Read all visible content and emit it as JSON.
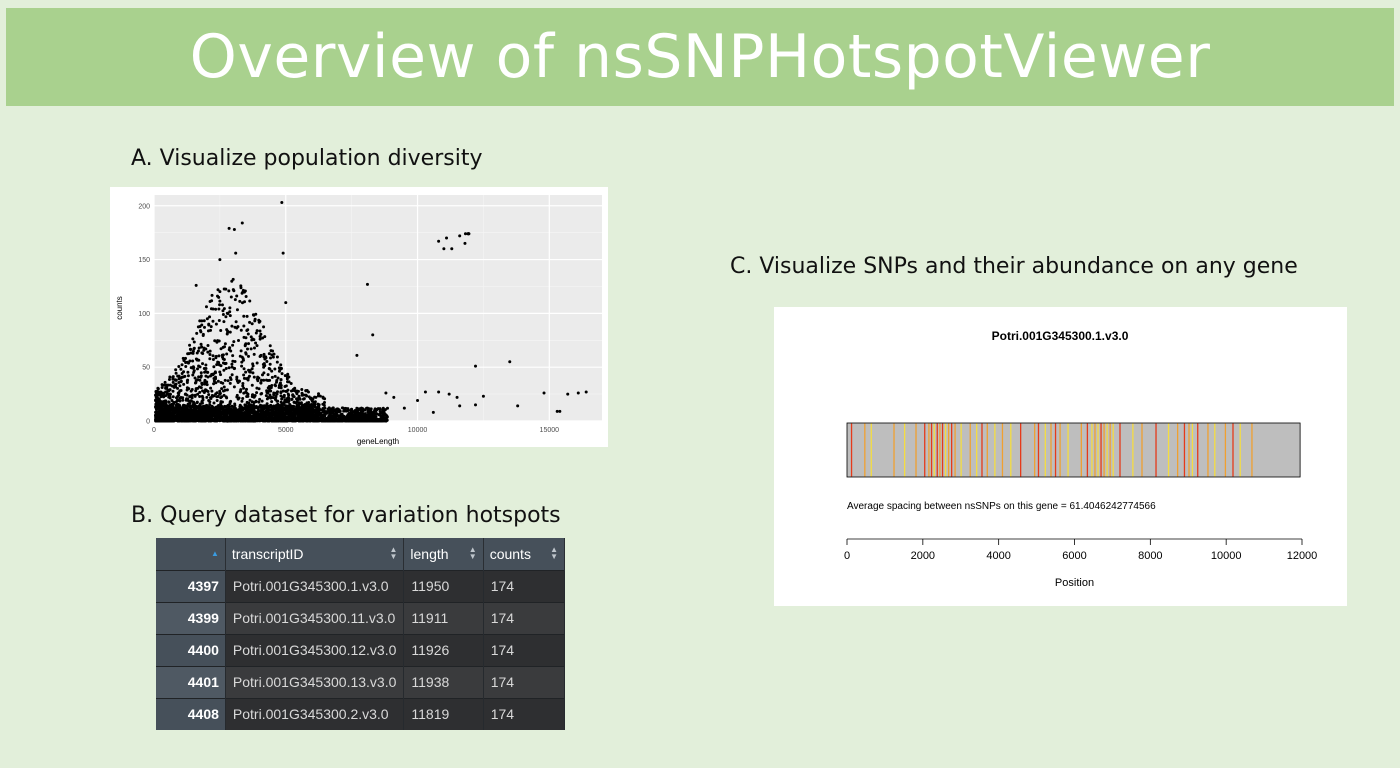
{
  "slide": {
    "title": "Overview of nsSNPHotspotViewer",
    "section_a": "A. Visualize population diversity",
    "section_b": "B. Query dataset for variation hotspots",
    "section_c": "C. Visualize SNPs and their abundance on any gene"
  },
  "table": {
    "columns": [
      "",
      "transcriptID",
      "length",
      "counts"
    ],
    "rows": [
      {
        "index": "4397",
        "transcriptID": "Potri.001G345300.1.v3.0",
        "length": "11950",
        "counts": "174"
      },
      {
        "index": "4399",
        "transcriptID": "Potri.001G345300.11.v3.0",
        "length": "11911",
        "counts": "174"
      },
      {
        "index": "4400",
        "transcriptID": "Potri.001G345300.12.v3.0",
        "length": "11926",
        "counts": "174"
      },
      {
        "index": "4401",
        "transcriptID": "Potri.001G345300.13.v3.0",
        "length": "11938",
        "counts": "174"
      },
      {
        "index": "4408",
        "transcriptID": "Potri.001G345300.2.v3.0",
        "length": "11819",
        "counts": "174"
      }
    ]
  },
  "chart_data": [
    {
      "type": "scatter",
      "title": "",
      "xlabel": "geneLength",
      "ylabel": "counts",
      "xlim": [
        0,
        17000
      ],
      "ylim": [
        0,
        210
      ],
      "xticks": [
        0,
        5000,
        10000,
        15000
      ],
      "yticks": [
        0,
        50,
        100,
        150,
        200
      ],
      "grid": true,
      "background": "#ebebeb",
      "point_color": "#000000",
      "outlier_points": [
        {
          "x": 4850,
          "y": 203
        },
        {
          "x": 3350,
          "y": 184
        },
        {
          "x": 2850,
          "y": 179
        },
        {
          "x": 3050,
          "y": 178
        },
        {
          "x": 4900,
          "y": 156
        },
        {
          "x": 3100,
          "y": 156
        },
        {
          "x": 2500,
          "y": 150
        },
        {
          "x": 1600,
          "y": 126
        },
        {
          "x": 8100,
          "y": 127
        },
        {
          "x": 8300,
          "y": 80
        },
        {
          "x": 7700,
          "y": 61
        },
        {
          "x": 5000,
          "y": 110
        },
        {
          "x": 11950,
          "y": 174
        },
        {
          "x": 11911,
          "y": 174
        },
        {
          "x": 11926,
          "y": 174
        },
        {
          "x": 11938,
          "y": 174
        },
        {
          "x": 11819,
          "y": 174
        },
        {
          "x": 11600,
          "y": 172
        },
        {
          "x": 11100,
          "y": 170
        },
        {
          "x": 10800,
          "y": 167
        },
        {
          "x": 11000,
          "y": 160
        },
        {
          "x": 11300,
          "y": 160
        },
        {
          "x": 11800,
          "y": 165
        },
        {
          "x": 12200,
          "y": 51
        },
        {
          "x": 13500,
          "y": 55
        },
        {
          "x": 16400,
          "y": 27
        },
        {
          "x": 16100,
          "y": 26
        },
        {
          "x": 15700,
          "y": 25
        },
        {
          "x": 14800,
          "y": 26
        },
        {
          "x": 15300,
          "y": 9
        },
        {
          "x": 15400,
          "y": 9
        },
        {
          "x": 13800,
          "y": 14
        },
        {
          "x": 12500,
          "y": 23
        },
        {
          "x": 11500,
          "y": 22
        },
        {
          "x": 11200,
          "y": 25
        },
        {
          "x": 10800,
          "y": 27
        },
        {
          "x": 10300,
          "y": 27
        },
        {
          "x": 10000,
          "y": 19
        },
        {
          "x": 11600,
          "y": 14
        },
        {
          "x": 12200,
          "y": 15
        },
        {
          "x": 10600,
          "y": 8
        },
        {
          "x": 9100,
          "y": 22
        },
        {
          "x": 9500,
          "y": 12
        },
        {
          "x": 8800,
          "y": 26
        }
      ]
    },
    {
      "type": "strip",
      "title": "Potri.001G345300.1.v3.0",
      "annotation": "Average spacing between nsSNPs on this gene = 61.4046242774566",
      "xlabel": "Position",
      "xlim": [
        0,
        12000
      ],
      "xticks": [
        0,
        2000,
        4000,
        6000,
        8000,
        10000,
        12000
      ],
      "gene_length": 11950,
      "bar_color": "#bebebe",
      "snps": [
        {
          "pos": 120,
          "color": "#e53a1a"
        },
        {
          "pos": 470,
          "color": "#f0a030"
        },
        {
          "pos": 640,
          "color": "#f5dd40"
        },
        {
          "pos": 1240,
          "color": "#f0a030"
        },
        {
          "pos": 1520,
          "color": "#f5dd40"
        },
        {
          "pos": 1820,
          "color": "#f0a030"
        },
        {
          "pos": 2050,
          "color": "#e53a1a"
        },
        {
          "pos": 2160,
          "color": "#f0a030"
        },
        {
          "pos": 2230,
          "color": "#e53a1a"
        },
        {
          "pos": 2300,
          "color": "#f5dd40"
        },
        {
          "pos": 2380,
          "color": "#e53a1a"
        },
        {
          "pos": 2450,
          "color": "#f0a030"
        },
        {
          "pos": 2520,
          "color": "#e53a1a"
        },
        {
          "pos": 2600,
          "color": "#f5dd40"
        },
        {
          "pos": 2680,
          "color": "#f0a030"
        },
        {
          "pos": 2760,
          "color": "#e53a1a"
        },
        {
          "pos": 2850,
          "color": "#f0a030"
        },
        {
          "pos": 3010,
          "color": "#f5dd40"
        },
        {
          "pos": 3250,
          "color": "#f0a030"
        },
        {
          "pos": 3420,
          "color": "#f5dd40"
        },
        {
          "pos": 3560,
          "color": "#e53a1a"
        },
        {
          "pos": 3700,
          "color": "#f0a030"
        },
        {
          "pos": 3900,
          "color": "#f5dd40"
        },
        {
          "pos": 4100,
          "color": "#f0a030"
        },
        {
          "pos": 4320,
          "color": "#f5dd40"
        },
        {
          "pos": 4580,
          "color": "#e53a1a"
        },
        {
          "pos": 4950,
          "color": "#f0a030"
        },
        {
          "pos": 5050,
          "color": "#e53a1a"
        },
        {
          "pos": 5230,
          "color": "#f5dd40"
        },
        {
          "pos": 5380,
          "color": "#f0a030"
        },
        {
          "pos": 5500,
          "color": "#e53a1a"
        },
        {
          "pos": 5620,
          "color": "#f0a030"
        },
        {
          "pos": 5830,
          "color": "#f5dd40"
        },
        {
          "pos": 6180,
          "color": "#f0a030"
        },
        {
          "pos": 6340,
          "color": "#e53a1a"
        },
        {
          "pos": 6460,
          "color": "#f5dd40"
        },
        {
          "pos": 6540,
          "color": "#f0a030"
        },
        {
          "pos": 6620,
          "color": "#f5dd40"
        },
        {
          "pos": 6700,
          "color": "#e53a1a"
        },
        {
          "pos": 6780,
          "color": "#f0a030"
        },
        {
          "pos": 6860,
          "color": "#f5dd40"
        },
        {
          "pos": 6940,
          "color": "#f0a030"
        },
        {
          "pos": 7020,
          "color": "#f5dd40"
        },
        {
          "pos": 7200,
          "color": "#e53a1a"
        },
        {
          "pos": 7540,
          "color": "#f5dd40"
        },
        {
          "pos": 7780,
          "color": "#f0a030"
        },
        {
          "pos": 8150,
          "color": "#e53a1a"
        },
        {
          "pos": 8480,
          "color": "#f5dd40"
        },
        {
          "pos": 8720,
          "color": "#f0a030"
        },
        {
          "pos": 8900,
          "color": "#e53a1a"
        },
        {
          "pos": 9020,
          "color": "#f0a030"
        },
        {
          "pos": 9110,
          "color": "#f5dd40"
        },
        {
          "pos": 9250,
          "color": "#e53a1a"
        },
        {
          "pos": 9520,
          "color": "#f0a030"
        },
        {
          "pos": 9700,
          "color": "#f5dd40"
        },
        {
          "pos": 9980,
          "color": "#f0a030"
        },
        {
          "pos": 10180,
          "color": "#e53a1a"
        },
        {
          "pos": 10370,
          "color": "#f5dd40"
        },
        {
          "pos": 10680,
          "color": "#f0a030"
        }
      ]
    }
  ]
}
